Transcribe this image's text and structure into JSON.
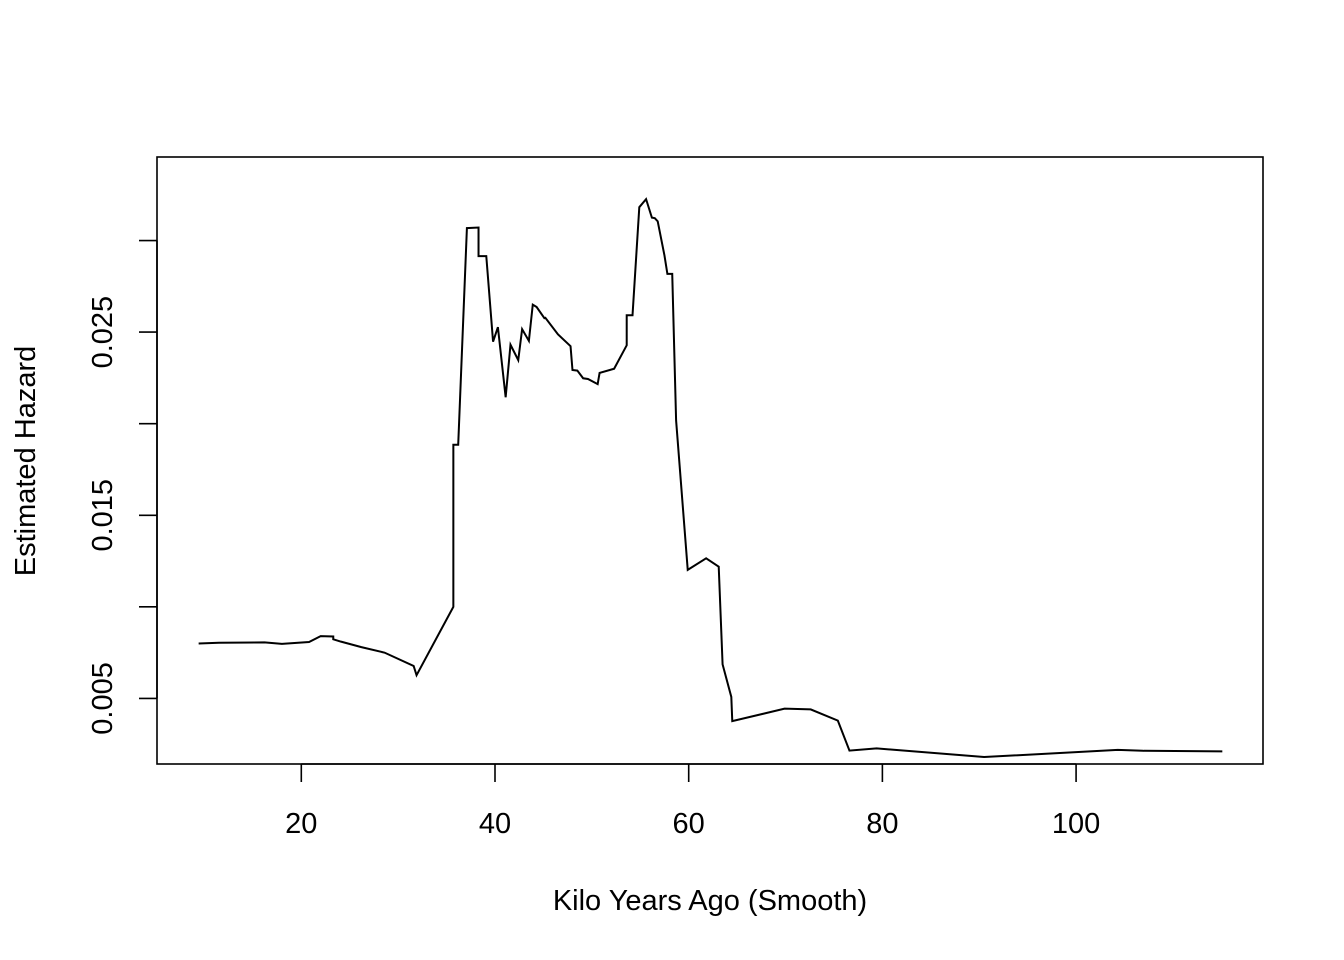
{
  "chart_data": {
    "type": "line",
    "title": "",
    "xlabel": "Kilo Years Ago (Smooth)",
    "ylabel": "Estimated Hazard",
    "xlim": [
      5.1,
      119.3
    ],
    "ylim": [
      0.00142,
      0.03456
    ],
    "x_ticks": [
      20,
      40,
      60,
      80,
      100
    ],
    "x_tick_labels": [
      "20",
      "40",
      "60",
      "80",
      "100"
    ],
    "y_ticks": [
      0.005,
      0.01,
      0.015,
      0.02,
      0.025,
      0.03
    ],
    "y_tick_labels": [
      "0.005",
      "",
      "0.015",
      "",
      "0.025",
      ""
    ],
    "grid": false,
    "line_color": "#000000",
    "series": [
      {
        "x": [
          9.4,
          11.5,
          16.2,
          16.8,
          18.0,
          20.8,
          22.0,
          23.3,
          23.3,
          24.1,
          26.2,
          28.6,
          31.6,
          31.9,
          35.7,
          35.7,
          36.2,
          37.1,
          38.3,
          38.3,
          39.1,
          39.8,
          40.3,
          41.1,
          41.6,
          42.4,
          42.8,
          43.5,
          43.9,
          44.3,
          45.1,
          45.2,
          46.5,
          47.8,
          48.0,
          48.5,
          49.1,
          49.6,
          50.6,
          50.8,
          52.3,
          53.6,
          53.6,
          54.2,
          54.9,
          55.6,
          56.2,
          56.5,
          56.8,
          57.5,
          57.8,
          58.3,
          58.7,
          59.9,
          61.8,
          63.1,
          63.5,
          64.4,
          64.5,
          69.9,
          72.6,
          75.4,
          76.6,
          79.4,
          90.5,
          104.3,
          106.9,
          115.1
        ],
        "y": [
          0.008,
          0.00804,
          0.00806,
          0.00803,
          0.00798,
          0.00808,
          0.0084,
          0.00838,
          0.00823,
          0.0081,
          0.0078,
          0.0075,
          0.00677,
          0.00627,
          0.01,
          0.01885,
          0.01885,
          0.03068,
          0.03071,
          0.02915,
          0.02915,
          0.02448,
          0.02527,
          0.02144,
          0.02431,
          0.02347,
          0.02516,
          0.02452,
          0.0265,
          0.02637,
          0.02576,
          0.02578,
          0.02488,
          0.02423,
          0.02293,
          0.0229,
          0.02248,
          0.02244,
          0.02216,
          0.02277,
          0.023,
          0.02428,
          0.02592,
          0.02592,
          0.03182,
          0.03226,
          0.03125,
          0.03122,
          0.03105,
          0.02918,
          0.02818,
          0.02818,
          0.02018,
          0.01202,
          0.01265,
          0.01219,
          0.00686,
          0.00508,
          0.00376,
          0.00444,
          0.0044,
          0.00379,
          0.00215,
          0.00227,
          0.0018,
          0.00219,
          0.00214,
          0.00211
        ]
      }
    ]
  }
}
